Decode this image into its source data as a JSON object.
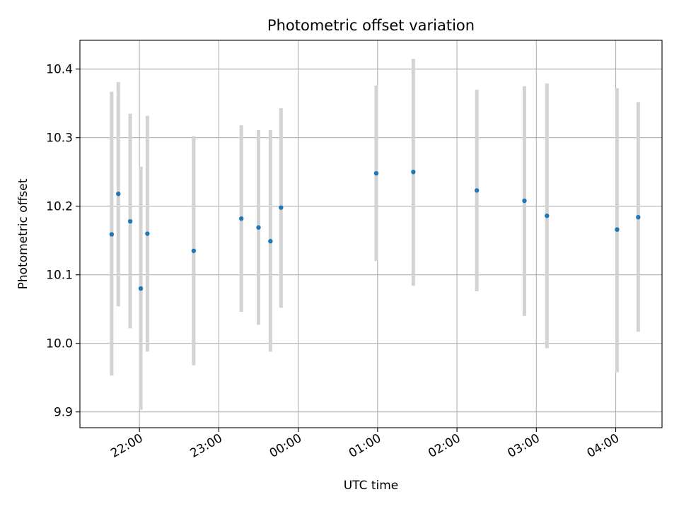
{
  "chart_data": {
    "type": "scatter",
    "title": "Photometric offset variation",
    "xlabel": "UTC time",
    "ylabel": "Photometric offset",
    "grid": true,
    "ylim": [
      9.877,
      10.442
    ],
    "xlim": [
      "21:15",
      "04:35"
    ],
    "y_ticks": [
      "9.9",
      "10.0",
      "10.1",
      "10.2",
      "10.3",
      "10.4"
    ],
    "x_ticks": [
      "22:00",
      "23:00",
      "00:00",
      "01:00",
      "02:00",
      "03:00",
      "04:00"
    ],
    "colors": {
      "point": "#1f77b4",
      "errorbar": "#d3d3d3",
      "grid": "#b0b0b0"
    },
    "series": [
      {
        "points": [
          {
            "x": "21:39",
            "y": 10.159,
            "yerr": [
              9.953,
              10.367
            ]
          },
          {
            "x": "21:44",
            "y": 10.218,
            "yerr": [
              10.054,
              10.381
            ]
          },
          {
            "x": "21:53",
            "y": 10.178,
            "yerr": [
              10.022,
              10.335
            ]
          },
          {
            "x": "22:01",
            "y": 10.08,
            "yerr": [
              9.903,
              10.258
            ]
          },
          {
            "x": "22:06",
            "y": 10.16,
            "yerr": [
              9.988,
              10.332
            ]
          },
          {
            "x": "22:41",
            "y": 10.135,
            "yerr": [
              9.968,
              10.302
            ]
          },
          {
            "x": "23:17",
            "y": 10.182,
            "yerr": [
              10.046,
              10.318
            ]
          },
          {
            "x": "23:30",
            "y": 10.169,
            "yerr": [
              10.027,
              10.311
            ]
          },
          {
            "x": "23:39",
            "y": 10.149,
            "yerr": [
              9.988,
              10.311
            ]
          },
          {
            "x": "23:47",
            "y": 10.198,
            "yerr": [
              10.052,
              10.343
            ]
          },
          {
            "x": "00:59",
            "y": 10.248,
            "yerr": [
              10.12,
              10.376
            ]
          },
          {
            "x": "01:27",
            "y": 10.25,
            "yerr": [
              10.084,
              10.415
            ]
          },
          {
            "x": "02:15",
            "y": 10.223,
            "yerr": [
              10.076,
              10.37
            ]
          },
          {
            "x": "02:51",
            "y": 10.208,
            "yerr": [
              10.04,
              10.375
            ]
          },
          {
            "x": "03:08",
            "y": 10.186,
            "yerr": [
              9.993,
              10.379
            ]
          },
          {
            "x": "04:01",
            "y": 10.166,
            "yerr": [
              9.958,
              10.372
            ]
          },
          {
            "x": "04:17",
            "y": 10.184,
            "yerr": [
              10.017,
              10.352
            ]
          }
        ]
      }
    ]
  }
}
